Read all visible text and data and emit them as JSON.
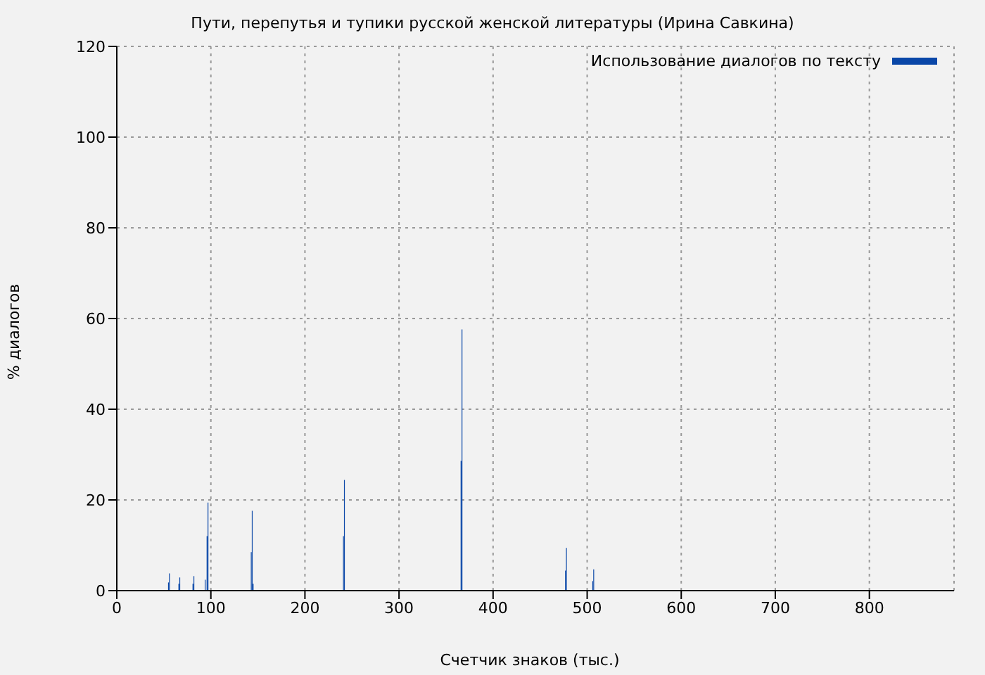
{
  "chart_data": {
    "type": "bar",
    "title": "Пути, перепутья и тупики русской женской литературы (Ирина Савкина)",
    "xlabel": "Счетчик знаков (тыс.)",
    "ylabel": "% диалогов",
    "xlim": [
      0,
      890
    ],
    "xticks": [
      0,
      100,
      200,
      300,
      400,
      500,
      600,
      700,
      800
    ],
    "ylim": [
      0,
      120
    ],
    "yticks": [
      0,
      20,
      40,
      60,
      80,
      100,
      120
    ],
    "grid": true,
    "legend": "top right",
    "series": [
      {
        "name": "Использование диалогов по тексту",
        "color": "#0a47a8",
        "x": [
          55,
          66,
          81,
          94,
          96,
          143,
          145,
          241,
          366,
          477,
          506
        ],
        "values": [
          1.8,
          1.5,
          1.5,
          2.4,
          12,
          8.5,
          1.5,
          12,
          28.6,
          4.4,
          2.1
        ]
      },
      {
        "color": "#0a47a8",
        "x": [
          56,
          67,
          82,
          97,
          144,
          242,
          367,
          478,
          507
        ],
        "values": [
          3.8,
          2.9,
          3.2,
          19.4,
          17.6,
          24.4,
          57.6,
          9.4,
          4.7
        ]
      }
    ]
  }
}
